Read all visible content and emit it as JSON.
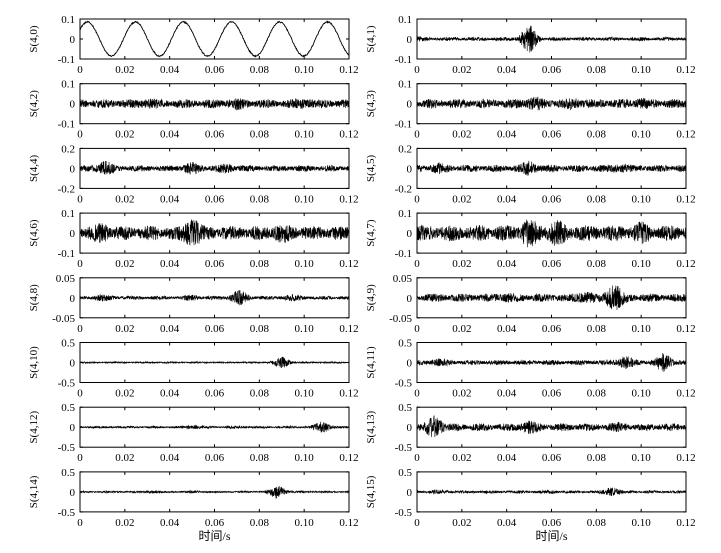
{
  "chart_data": {
    "type": "line",
    "layout": "8 rows x 2 columns of small-multiple waveform panels",
    "x_axis": {
      "label": "时间/s",
      "range": [
        0,
        0.12
      ],
      "ticks": [
        "0",
        "0.02",
        "0.04",
        "0.06",
        "0.08",
        "0.10",
        "0.12"
      ]
    },
    "panels": [
      {
        "ylabel": "S(4,0)",
        "ylim": [
          -0.1,
          0.1
        ],
        "yticks": [
          "0.1",
          "0",
          "-0.1"
        ],
        "amp": 0.085,
        "style": "sine",
        "cycles": 5.6,
        "burst_centers": [],
        "burst_gains": []
      },
      {
        "ylabel": "S(4,1)",
        "ylim": [
          -0.1,
          0.1
        ],
        "yticks": [
          "0.1",
          "0",
          "-0.1"
        ],
        "amp": 0.012,
        "style": "noise",
        "burst_centers": [
          0.05,
          0.0
        ],
        "burst_gains": [
          6.0,
          1.5
        ]
      },
      {
        "ylabel": "S(4,2)",
        "ylim": [
          -0.1,
          0.1
        ],
        "yticks": [
          "0.1",
          "0",
          "-0.1"
        ],
        "amp": 0.028,
        "style": "noise",
        "burst_centers": [
          0.03,
          0.07,
          0.1
        ],
        "burst_gains": [
          1.3,
          1.4,
          1.3
        ]
      },
      {
        "ylabel": "S(4,3)",
        "ylim": [
          -0.1,
          0.1
        ],
        "yticks": [
          "0.1",
          "0",
          "-0.1"
        ],
        "amp": 0.03,
        "style": "noise",
        "burst_centers": [
          0.052,
          0.07,
          0.1
        ],
        "burst_gains": [
          1.5,
          1.3,
          1.3
        ]
      },
      {
        "ylabel": "S(4,4)",
        "ylim": [
          -0.2,
          0.2
        ],
        "yticks": [
          "0.2",
          "0",
          "-0.2"
        ],
        "amp": 0.04,
        "style": "noise",
        "burst_centers": [
          0.011,
          0.05,
          0.065
        ],
        "burst_gains": [
          2.2,
          1.8,
          1.6
        ]
      },
      {
        "ylabel": "S(4,5)",
        "ylim": [
          -0.2,
          0.2
        ],
        "yticks": [
          "0.2",
          "0",
          "-0.2"
        ],
        "amp": 0.045,
        "style": "noise",
        "burst_centers": [
          0.05,
          0.01,
          0.09
        ],
        "burst_gains": [
          2.0,
          1.5,
          1.4
        ]
      },
      {
        "ylabel": "S(4,6)",
        "ylim": [
          -0.1,
          0.1
        ],
        "yticks": [
          "0.1",
          "0",
          "-0.1"
        ],
        "amp": 0.045,
        "style": "noise",
        "burst_centers": [
          0.05,
          0.01,
          0.09
        ],
        "burst_gains": [
          2.0,
          1.4,
          1.4
        ]
      },
      {
        "ylabel": "S(4,7)",
        "ylim": [
          -0.1,
          0.1
        ],
        "yticks": [
          "0.1",
          "0",
          "-0.1"
        ],
        "amp": 0.05,
        "style": "noise",
        "burst_centers": [
          0.05,
          0.062,
          0.1
        ],
        "burst_gains": [
          1.8,
          1.6,
          1.4
        ]
      },
      {
        "ylabel": "S(4,8)",
        "ylim": [
          -0.05,
          0.05
        ],
        "yticks": [
          "0.05",
          "0",
          "-0.05"
        ],
        "amp": 0.006,
        "style": "noise",
        "burst_centers": [
          0.071,
          0.01,
          0.05,
          0.095
        ],
        "burst_gains": [
          3.5,
          1.8,
          1.6,
          1.8
        ]
      },
      {
        "ylabel": "S(4,9)",
        "ylim": [
          -0.05,
          0.05
        ],
        "yticks": [
          "0.05",
          "0",
          "-0.05"
        ],
        "amp": 0.013,
        "style": "noise",
        "burst_centers": [
          0.088,
          0.075,
          0.04
        ],
        "burst_gains": [
          3.0,
          1.6,
          1.3
        ]
      },
      {
        "ylabel": "S(4,10)",
        "ylim": [
          -0.5,
          0.5
        ],
        "yticks": [
          "0.5",
          "0",
          "-0.5"
        ],
        "amp": 0.025,
        "style": "noise",
        "burst_centers": [
          0.09,
          0.0
        ],
        "burst_gains": [
          6.0,
          1.0
        ]
      },
      {
        "ylabel": "S(4,11)",
        "ylim": [
          -0.5,
          0.5
        ],
        "yticks": [
          "0.5",
          "0",
          "-0.5"
        ],
        "amp": 0.08,
        "style": "noise",
        "burst_centers": [
          0.11,
          0.093,
          0.01
        ],
        "burst_gains": [
          3.2,
          2.4,
          1.6
        ]
      },
      {
        "ylabel": "S(4,12)",
        "ylim": [
          -0.5,
          0.5
        ],
        "yticks": [
          "0.5",
          "0",
          "-0.5"
        ],
        "amp": 0.035,
        "style": "noise",
        "burst_centers": [
          0.108,
          0.05,
          0.07
        ],
        "burst_gains": [
          4.5,
          2.0,
          1.5
        ]
      },
      {
        "ylabel": "S(4,13)",
        "ylim": [
          -0.5,
          0.5
        ],
        "yticks": [
          "0.5",
          "0",
          "-0.5"
        ],
        "amp": 0.12,
        "style": "noise",
        "burst_centers": [
          0.008,
          0.05,
          0.09
        ],
        "burst_gains": [
          2.8,
          1.8,
          1.3
        ]
      },
      {
        "ylabel": "S(4,14)",
        "ylim": [
          -0.5,
          0.5
        ],
        "yticks": [
          "0.5",
          "0",
          "-0.5"
        ],
        "amp": 0.03,
        "style": "noise",
        "burst_centers": [
          0.088,
          0.032,
          0.05
        ],
        "burst_gains": [
          6.0,
          1.8,
          1.5
        ]
      },
      {
        "ylabel": "S(4,15)",
        "ylim": [
          -0.5,
          0.5
        ],
        "yticks": [
          "0.5",
          "0",
          "-0.5"
        ],
        "amp": 0.045,
        "style": "noise",
        "burst_centers": [
          0.087,
          0.01,
          0.06
        ],
        "burst_gains": [
          3.0,
          1.5,
          1.3
        ]
      }
    ]
  }
}
